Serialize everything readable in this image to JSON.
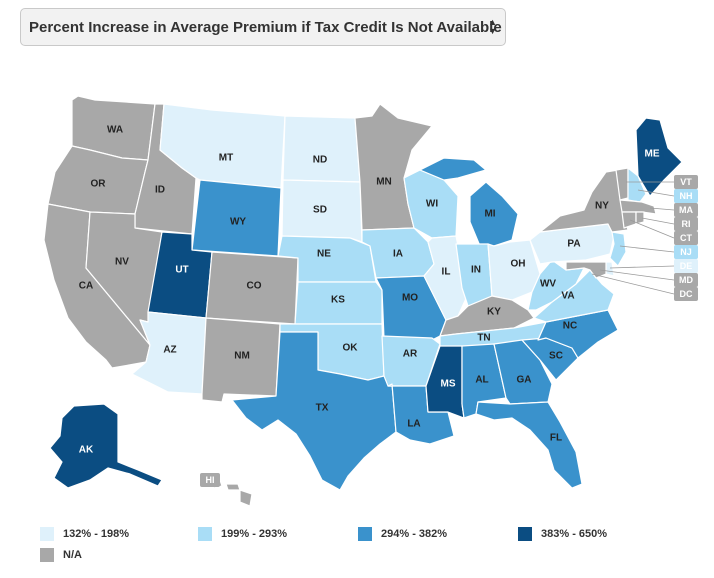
{
  "selector": {
    "label": "Percent Increase in Average Premium if Tax Credit Is Not Available"
  },
  "colors": {
    "c1": "#dff1fb",
    "c2": "#a9ddf6",
    "c3": "#3a92cc",
    "c4": "#0b4d82",
    "na": "#a8a8a8"
  },
  "legend": [
    {
      "label": "132% - 198%",
      "cls": "c1"
    },
    {
      "label": "199% - 293%",
      "cls": "c2"
    },
    {
      "label": "294% - 382%",
      "cls": "c3"
    },
    {
      "label": "383% - 650%",
      "cls": "c4"
    },
    {
      "label": "N/A",
      "cls": "na"
    }
  ],
  "states": {
    "WA": "na",
    "OR": "na",
    "CA": "na",
    "ID": "na",
    "NV": "na",
    "MT": "c1",
    "WY": "c3",
    "UT": "c4",
    "AZ": "c1",
    "CO": "na",
    "NM": "na",
    "ND": "c1",
    "SD": "c1",
    "NE": "c2",
    "KS": "c2",
    "OK": "c2",
    "TX": "c3",
    "MN": "na",
    "IA": "c2",
    "MO": "c3",
    "AR": "c2",
    "LA": "c3",
    "WI": "c2",
    "IL": "c1",
    "MI": "c3",
    "IN": "c2",
    "OH": "c1",
    "KY": "na",
    "TN": "c2",
    "MS": "c4",
    "AL": "c3",
    "GA": "c3",
    "FL": "c3",
    "SC": "c3",
    "NC": "c3",
    "VA": "c2",
    "WV": "c2",
    "PA": "c1",
    "NY": "na",
    "ME": "c4",
    "VT": "na",
    "NH": "c2",
    "MA": "na",
    "RI": "na",
    "CT": "na",
    "NJ": "c2",
    "DE": "c1",
    "MD": "na",
    "DC": "na",
    "AK": "c4",
    "HI": "na"
  },
  "label_text": {
    "WA": "WA",
    "OR": "OR",
    "CA": "CA",
    "ID": "ID",
    "NV": "NV",
    "MT": "MT",
    "WY": "WY",
    "UT": "UT",
    "AZ": "AZ",
    "CO": "CO",
    "NM": "NM",
    "ND": "ND",
    "SD": "SD",
    "NE": "NE",
    "KS": "KS",
    "OK": "OK",
    "TX": "TX",
    "MN": "MN",
    "IA": "IA",
    "MO": "MO",
    "AR": "AR",
    "LA": "LA",
    "WI": "WI",
    "IL": "IL",
    "MI": "MI",
    "IN": "IN",
    "OH": "OH",
    "KY": "KY",
    "TN": "TN",
    "MS": "MS",
    "AL": "AL",
    "GA": "GA",
    "FL": "FL",
    "SC": "SC",
    "NC": "NC",
    "VA": "VA",
    "WV": "WV",
    "PA": "PA",
    "NY": "NY",
    "ME": "ME",
    "AK": "AK",
    "HI": "HI",
    "VT": "VT",
    "NH": "NH",
    "MA": "MA",
    "RI": "RI",
    "CT": "CT",
    "NJ": "NJ",
    "DE": "DE",
    "MD": "MD",
    "DC": "DC"
  }
}
